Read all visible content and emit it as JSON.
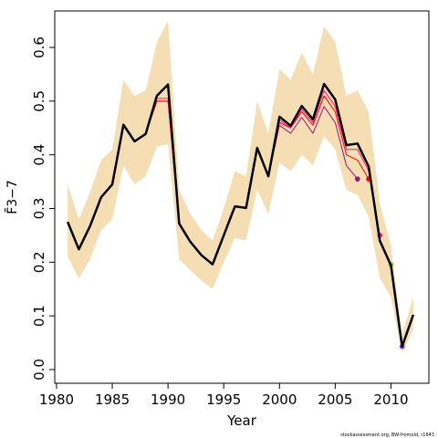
{
  "chart_data": {
    "type": "line",
    "xlabel": "Year",
    "ylabel": "F̄3−7",
    "footnote": "stockassessment.org, BW-fromold, r1643",
    "x": [
      1981,
      1982,
      1983,
      1984,
      1985,
      1986,
      1987,
      1988,
      1989,
      1990,
      1991,
      1992,
      1993,
      1994,
      1995,
      1996,
      1997,
      1998,
      1999,
      2000,
      2001,
      2002,
      2003,
      2004,
      2005,
      2006,
      2007,
      2008,
      2009,
      2010,
      2011,
      2012
    ],
    "band_color": "#f5deb3",
    "band_upper": [
      0.345,
      0.28,
      0.33,
      0.39,
      0.41,
      0.54,
      0.51,
      0.52,
      0.61,
      0.65,
      0.335,
      0.29,
      0.26,
      0.24,
      0.3,
      0.37,
      0.36,
      0.5,
      0.44,
      0.56,
      0.54,
      0.59,
      0.55,
      0.64,
      0.61,
      0.51,
      0.52,
      0.48,
      0.31,
      0.23,
      0.065,
      0.135
    ],
    "band_lower": [
      0.21,
      0.17,
      0.205,
      0.26,
      0.28,
      0.38,
      0.345,
      0.36,
      0.415,
      0.42,
      0.205,
      0.185,
      0.165,
      0.15,
      0.2,
      0.245,
      0.24,
      0.335,
      0.29,
      0.385,
      0.37,
      0.4,
      0.38,
      0.435,
      0.41,
      0.335,
      0.325,
      0.285,
      0.17,
      0.135,
      0.03,
      0.075
    ],
    "series": [
      {
        "color": "#a0107a",
        "values": [
          0.275,
          0.224,
          0.267,
          0.321,
          0.345,
          0.456,
          0.425,
          0.439,
          0.5,
          0.5,
          0.272,
          0.238,
          0.213,
          0.196,
          0.25,
          0.304,
          0.301,
          0.413,
          0.36,
          0.455,
          0.44,
          0.47,
          0.44,
          0.49,
          0.46,
          0.38,
          0.355,
          null,
          null,
          null,
          null,
          null
        ]
      },
      {
        "color": "#ff0000",
        "values": [
          0.275,
          0.224,
          0.267,
          0.321,
          0.345,
          0.456,
          0.425,
          0.439,
          0.5,
          0.5,
          0.272,
          0.238,
          0.213,
          0.196,
          0.25,
          0.304,
          0.301,
          0.413,
          0.36,
          0.46,
          0.45,
          0.48,
          0.455,
          0.51,
          0.48,
          0.4,
          0.39,
          0.355,
          null,
          null,
          null,
          null
        ]
      },
      {
        "color": "#ff1493",
        "values": [
          0.275,
          0.224,
          0.267,
          0.321,
          0.345,
          0.456,
          0.425,
          0.439,
          0.505,
          0.505,
          0.272,
          0.238,
          0.213,
          0.196,
          0.25,
          0.304,
          0.301,
          0.413,
          0.36,
          0.465,
          0.45,
          0.485,
          0.46,
          0.52,
          0.49,
          0.41,
          0.41,
          0.37,
          0.25,
          null,
          null,
          null
        ]
      },
      {
        "color": "#7fcc00",
        "values": [
          0.275,
          0.224,
          0.267,
          0.321,
          0.345,
          0.456,
          0.425,
          0.439,
          0.51,
          0.531,
          0.272,
          0.238,
          0.213,
          0.196,
          0.25,
          0.304,
          0.301,
          0.413,
          0.36,
          0.471,
          0.454,
          0.491,
          0.466,
          0.532,
          0.503,
          0.418,
          0.421,
          0.378,
          0.24,
          0.195,
          null,
          null
        ]
      },
      {
        "color": "#8a2be2",
        "values": [
          0.275,
          0.224,
          0.267,
          0.321,
          0.345,
          0.456,
          0.425,
          0.439,
          0.51,
          0.531,
          0.272,
          0.238,
          0.213,
          0.196,
          0.25,
          0.304,
          0.301,
          0.413,
          0.36,
          0.471,
          0.454,
          0.491,
          0.466,
          0.532,
          0.503,
          0.418,
          0.421,
          0.378,
          0.24,
          0.194,
          0.043,
          null
        ]
      },
      {
        "color": "#000000",
        "values": [
          0.275,
          0.224,
          0.267,
          0.321,
          0.345,
          0.456,
          0.425,
          0.439,
          0.51,
          0.531,
          0.272,
          0.238,
          0.213,
          0.196,
          0.25,
          0.304,
          0.301,
          0.413,
          0.36,
          0.471,
          0.454,
          0.491,
          0.466,
          0.532,
          0.503,
          0.418,
          0.421,
          0.378,
          0.24,
          0.194,
          0.043,
          0.102
        ]
      }
    ],
    "xlim": [
      1979.84,
      2013.4
    ],
    "ylim": [
      -0.0255,
      0.668
    ],
    "xticks": [
      1980,
      1985,
      1990,
      1995,
      2000,
      2005,
      2010
    ],
    "yticks": [
      {
        "value": 0,
        "label": "0.0"
      },
      0.1,
      0.2,
      0.3,
      0.4,
      0.5,
      0.6
    ]
  }
}
